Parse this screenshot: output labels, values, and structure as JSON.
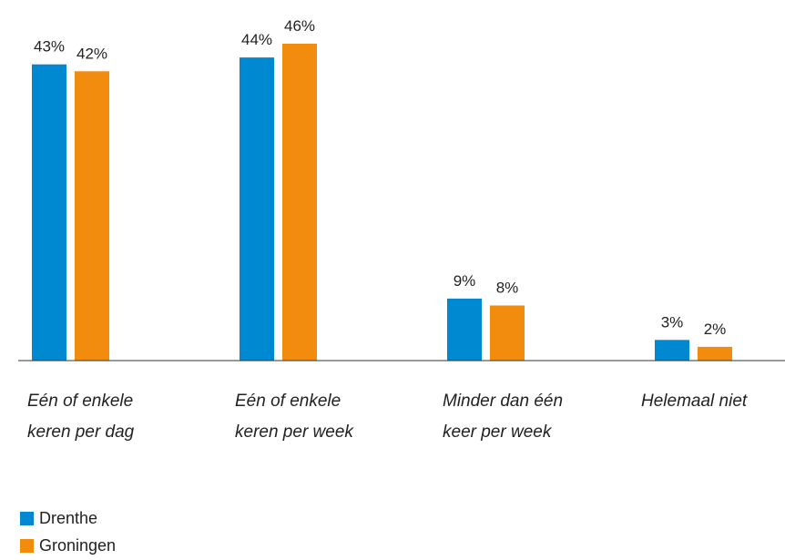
{
  "chart_data": {
    "type": "bar",
    "categories": [
      "Eén of enkele keren per dag",
      "Eén of enkele keren per week",
      "Minder dan één keer per week",
      "Helemaal niet"
    ],
    "series": [
      {
        "name": "Drenthe",
        "color": "#0088d0",
        "values": [
          43,
          44,
          9,
          3
        ],
        "value_labels": [
          "43%",
          "44%",
          "9%",
          "3%"
        ]
      },
      {
        "name": "Groningen",
        "color": "#f28c0f",
        "values": [
          42,
          46,
          8,
          2
        ],
        "value_labels": [
          "42%",
          "46%",
          "8%",
          "2%"
        ]
      }
    ],
    "legend": "bottom-left"
  }
}
